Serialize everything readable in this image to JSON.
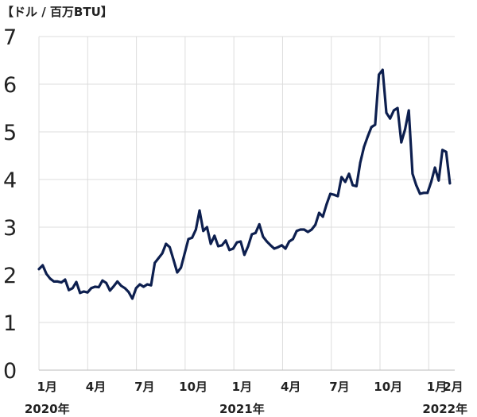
{
  "chart_data": {
    "type": "line",
    "unit_label": "【ドル / 百万BTU】",
    "ylim": [
      0,
      7
    ],
    "yticks": [
      "0",
      "1",
      "2",
      "3",
      "4",
      "5",
      "6",
      "7"
    ],
    "xlim": [
      0,
      25.6
    ],
    "x_ticks": [
      {
        "label": "1月",
        "pos": 0.5
      },
      {
        "label": "4月",
        "pos": 3.5
      },
      {
        "label": "7月",
        "pos": 6.5
      },
      {
        "label": "10月",
        "pos": 9.5
      },
      {
        "label": "1月",
        "pos": 12.5
      },
      {
        "label": "4月",
        "pos": 15.5
      },
      {
        "label": "7月",
        "pos": 18.5
      },
      {
        "label": "10月",
        "pos": 21.5
      },
      {
        "label": "1月",
        "pos": 24.5
      },
      {
        "label": "2月",
        "pos": 25.5
      }
    ],
    "years": [
      {
        "label": "2020年",
        "pos": 0.5
      },
      {
        "label": "2021年",
        "pos": 12.5
      },
      {
        "label": "2022年",
        "pos": 25.0
      }
    ],
    "gridlines": [
      0,
      3,
      6,
      9,
      12,
      15,
      18,
      21,
      24
    ],
    "grid": true,
    "color": "#0d1f4f",
    "series": [
      {
        "x": [
          0.0,
          0.23,
          0.46,
          0.69,
          0.92,
          1.15,
          1.38,
          1.61,
          1.84,
          2.07,
          2.3,
          2.53,
          2.76,
          2.99,
          3.22,
          3.45,
          3.68,
          3.91,
          4.14,
          4.37,
          4.6,
          4.83,
          5.06,
          5.29,
          5.52,
          5.75,
          5.98,
          6.21,
          6.44,
          6.67,
          6.9,
          7.13,
          7.36,
          7.59,
          7.82,
          8.05,
          8.28,
          8.51,
          8.74,
          8.97,
          9.2,
          9.43,
          9.66,
          9.89,
          10.12,
          10.35,
          10.58,
          10.81,
          11.04,
          11.27,
          11.5,
          11.73,
          11.96,
          12.19,
          12.42,
          12.65,
          12.88,
          13.11,
          13.34,
          13.57,
          13.8,
          14.03,
          14.26,
          14.49,
          14.72,
          14.95,
          15.18,
          15.41,
          15.64,
          15.87,
          16.1,
          16.33,
          16.56,
          16.79,
          17.02,
          17.25,
          17.48,
          17.71,
          17.94,
          18.17,
          18.4,
          18.63,
          18.86,
          19.09,
          19.32,
          19.55,
          19.78,
          20.01,
          20.24,
          20.47,
          20.7,
          20.93,
          21.16,
          21.39,
          21.62,
          21.85,
          22.08,
          22.31,
          22.54,
          22.77,
          23.0,
          23.23,
          23.46,
          23.69,
          23.92,
          24.15,
          24.38,
          24.61,
          24.84,
          25.07,
          25.3
        ],
        "values": [
          2.12,
          2.2,
          2.02,
          1.92,
          1.86,
          1.86,
          1.84,
          1.9,
          1.68,
          1.72,
          1.85,
          1.62,
          1.65,
          1.63,
          1.72,
          1.75,
          1.74,
          1.88,
          1.83,
          1.67,
          1.76,
          1.86,
          1.77,
          1.72,
          1.64,
          1.5,
          1.72,
          1.8,
          1.75,
          1.8,
          1.78,
          2.25,
          2.35,
          2.45,
          2.65,
          2.58,
          2.32,
          2.05,
          2.15,
          2.45,
          2.75,
          2.78,
          2.95,
          3.35,
          2.92,
          3.0,
          2.65,
          2.82,
          2.6,
          2.62,
          2.72,
          2.52,
          2.55,
          2.68,
          2.7,
          2.42,
          2.6,
          2.85,
          2.88,
          3.06,
          2.8,
          2.7,
          2.62,
          2.55,
          2.58,
          2.62,
          2.55,
          2.7,
          2.75,
          2.92,
          2.95,
          2.95,
          2.9,
          2.95,
          3.05,
          3.3,
          3.22,
          3.48,
          3.7,
          3.68,
          3.65,
          4.05,
          3.95,
          4.12,
          3.88,
          3.86,
          4.35,
          4.68,
          4.9,
          5.1,
          5.15,
          6.2,
          6.3,
          5.4,
          5.28,
          5.45,
          5.5,
          4.78,
          5.05,
          5.45,
          4.12,
          3.88,
          3.7,
          3.72,
          3.72,
          3.95,
          4.25,
          3.98,
          4.62,
          4.58,
          3.92
        ]
      }
    ]
  }
}
